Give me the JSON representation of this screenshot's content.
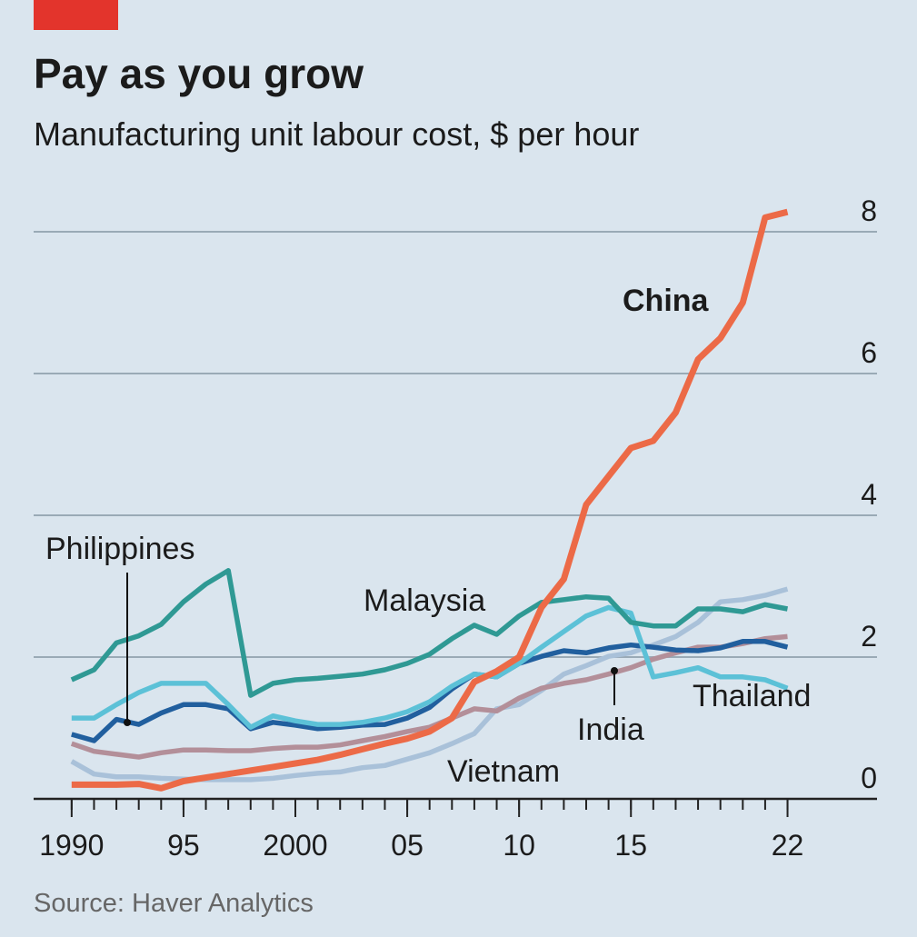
{
  "chart_data": {
    "type": "line",
    "title": "Pay as you grow",
    "subtitle": "Manufacturing unit labour cost, $ per hour",
    "source": "Source: Haver Analytics",
    "x": [
      1990,
      1991,
      1992,
      1993,
      1994,
      1995,
      1996,
      1997,
      1998,
      1999,
      2000,
      2001,
      2002,
      2003,
      2004,
      2005,
      2006,
      2007,
      2008,
      2009,
      2010,
      2011,
      2012,
      2013,
      2014,
      2015,
      2016,
      2017,
      2018,
      2019,
      2020,
      2021,
      2022
    ],
    "xlim": [
      1988.3,
      2026
    ],
    "xticks": [
      {
        "value": 1990,
        "label": "1990"
      },
      {
        "value": 1995,
        "label": "95"
      },
      {
        "value": 2000,
        "label": "2000"
      },
      {
        "value": 2005,
        "label": "05"
      },
      {
        "value": 2010,
        "label": "10"
      },
      {
        "value": 2015,
        "label": "15"
      },
      {
        "value": 2022,
        "label": "22"
      }
    ],
    "xminorticks": [
      1990,
      1991,
      1992,
      1993,
      1994,
      1995,
      1996,
      1997,
      1998,
      1999,
      2000,
      2001,
      2002,
      2003,
      2004,
      2005,
      2006,
      2007,
      2008,
      2009,
      2010,
      2011,
      2012,
      2013,
      2014,
      2015,
      2016,
      2017,
      2018,
      2019,
      2020,
      2021,
      2022
    ],
    "ylim": [
      0,
      8.3
    ],
    "yticks": [
      0,
      2,
      4,
      6,
      8
    ],
    "grid": true,
    "series": [
      {
        "name": "Vietnam",
        "color": "#a9c1d9",
        "values": [
          0.53,
          0.35,
          0.31,
          0.31,
          0.29,
          0.28,
          0.27,
          0.27,
          0.27,
          0.29,
          0.33,
          0.36,
          0.38,
          0.44,
          0.47,
          0.56,
          0.65,
          0.78,
          0.92,
          1.27,
          1.33,
          1.53,
          1.76,
          1.88,
          2.01,
          2.06,
          2.17,
          2.29,
          2.49,
          2.78,
          2.81,
          2.87,
          2.96
        ]
      },
      {
        "name": "India",
        "color": "#b38f99",
        "values": [
          0.78,
          0.67,
          0.63,
          0.59,
          0.65,
          0.69,
          0.69,
          0.68,
          0.68,
          0.71,
          0.73,
          0.73,
          0.76,
          0.82,
          0.88,
          0.95,
          1.01,
          1.14,
          1.27,
          1.24,
          1.42,
          1.56,
          1.63,
          1.68,
          1.76,
          1.85,
          1.97,
          2.06,
          2.14,
          2.14,
          2.19,
          2.26,
          2.29
        ]
      },
      {
        "name": "Philippines",
        "color": "#215f9e",
        "values": [
          0.91,
          0.82,
          1.12,
          1.05,
          1.21,
          1.33,
          1.33,
          1.27,
          0.99,
          1.08,
          1.04,
          0.99,
          1.01,
          1.04,
          1.05,
          1.14,
          1.29,
          1.55,
          1.76,
          1.72,
          1.91,
          2.01,
          2.09,
          2.06,
          2.13,
          2.17,
          2.14,
          2.1,
          2.09,
          2.13,
          2.22,
          2.22,
          2.14
        ]
      },
      {
        "name": "Thailand",
        "color": "#5cc1d7",
        "values": [
          1.14,
          1.14,
          1.33,
          1.5,
          1.63,
          1.63,
          1.63,
          1.33,
          1.01,
          1.17,
          1.1,
          1.05,
          1.05,
          1.08,
          1.14,
          1.23,
          1.37,
          1.59,
          1.76,
          1.72,
          1.91,
          2.14,
          2.36,
          2.58,
          2.7,
          2.62,
          1.72,
          1.78,
          1.85,
          1.72,
          1.72,
          1.68,
          1.56
        ]
      },
      {
        "name": "Malaysia",
        "color": "#2f9994",
        "values": [
          1.68,
          1.82,
          2.2,
          2.3,
          2.46,
          2.78,
          3.03,
          3.22,
          1.46,
          1.63,
          1.68,
          1.7,
          1.73,
          1.76,
          1.82,
          1.91,
          2.04,
          2.26,
          2.45,
          2.32,
          2.58,
          2.77,
          2.81,
          2.85,
          2.83,
          2.49,
          2.44,
          2.44,
          2.68,
          2.68,
          2.64,
          2.74,
          2.68
        ]
      },
      {
        "name": "China",
        "color": "#ec6a47",
        "values": [
          0.2,
          0.2,
          0.2,
          0.21,
          0.15,
          0.25,
          0.3,
          0.35,
          0.4,
          0.45,
          0.5,
          0.55,
          0.62,
          0.7,
          0.78,
          0.85,
          0.95,
          1.14,
          1.65,
          1.8,
          2.0,
          2.7,
          3.1,
          4.15,
          4.55,
          4.95,
          5.05,
          5.45,
          6.2,
          6.5,
          7.0,
          8.2,
          8.28
        ]
      }
    ]
  }
}
